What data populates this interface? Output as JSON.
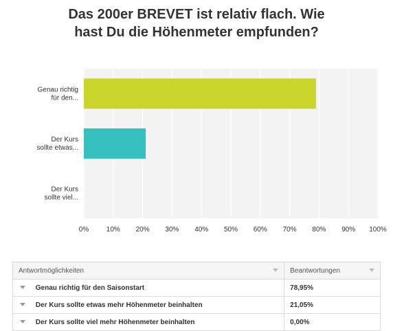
{
  "chart_data": {
    "type": "bar",
    "orientation": "horizontal",
    "title_lines": [
      "Das 200er BREVET ist relativ flach. Wie",
      "hast Du die Höhenmeter empfunden?"
    ],
    "categories": [
      [
        "Genau richtig",
        "für den..."
      ],
      [
        "Der Kurs",
        "sollte etwas..."
      ],
      [
        "Der Kurs",
        "sollte viel..."
      ]
    ],
    "values": [
      78.95,
      21.05,
      0.0
    ],
    "bar_colors": [
      "#c9d52a",
      "#35bfbf",
      "#9ec64b"
    ],
    "xlim": [
      0,
      100
    ],
    "ticks": [
      "0%",
      "10%",
      "20%",
      "30%",
      "40%",
      "50%",
      "60%",
      "70%",
      "80%",
      "90%",
      "100%"
    ],
    "grid": true
  },
  "table": {
    "headers": [
      "Antwortmöglichkeiten",
      "Beantwortungen"
    ],
    "rows": [
      {
        "choice": "Genau richtig für den Saisonstart",
        "value": "78,95%"
      },
      {
        "choice": "Der Kurs sollte etwas mehr Höhenmeter beinhalten",
        "value": "21,05%"
      },
      {
        "choice": "Der Kurs sollte viel mehr Höhenmeter beinhalten",
        "value": "0,00%"
      }
    ]
  }
}
